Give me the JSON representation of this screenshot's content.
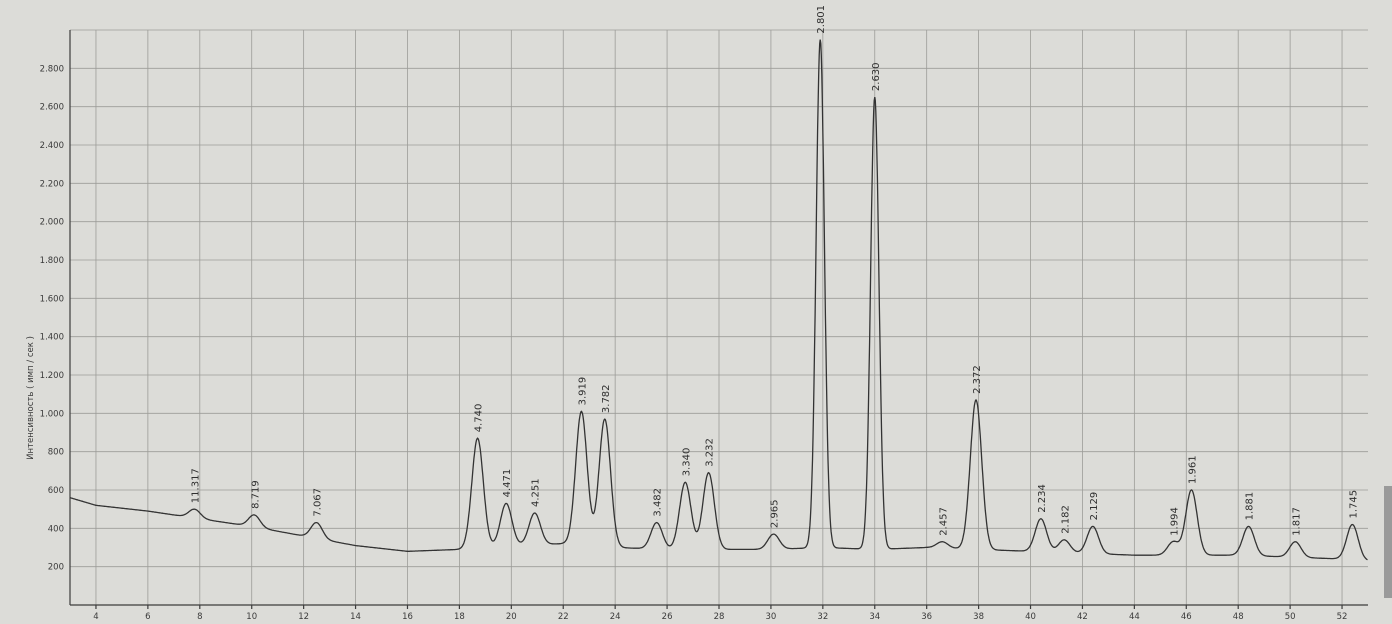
{
  "chart_data": {
    "type": "line",
    "title": "",
    "xlabel": "",
    "ylabel": "Интенсивность ( имп / сек )",
    "xlim": [
      3,
      53
    ],
    "ylim": [
      0,
      3000
    ],
    "x_ticks": [
      "4",
      "6",
      "8",
      "10",
      "12",
      "14",
      "16",
      "18",
      "20",
      "22",
      "24",
      "26",
      "28",
      "30",
      "32",
      "34",
      "36",
      "38",
      "40",
      "42",
      "44",
      "46",
      "48",
      "50",
      "52"
    ],
    "y_ticks": [
      "200",
      "400",
      "600",
      "800",
      "1.000",
      "1.200",
      "1.400",
      "1.600",
      "1.800",
      "2.000",
      "2.200",
      "2.400",
      "2.600",
      "2.800"
    ],
    "grid": true,
    "baseline": [
      [
        3,
        560
      ],
      [
        4,
        520
      ],
      [
        6,
        490
      ],
      [
        8,
        450
      ],
      [
        10,
        410
      ],
      [
        12,
        360
      ],
      [
        14,
        310
      ],
      [
        16,
        280
      ],
      [
        18,
        290
      ],
      [
        20,
        310
      ],
      [
        22,
        320
      ],
      [
        24,
        300
      ],
      [
        26,
        290
      ],
      [
        28,
        290
      ],
      [
        30,
        290
      ],
      [
        32,
        300
      ],
      [
        34,
        290
      ],
      [
        36,
        300
      ],
      [
        38,
        290
      ],
      [
        40,
        280
      ],
      [
        42,
        270
      ],
      [
        44,
        260
      ],
      [
        46,
        260
      ],
      [
        48,
        260
      ],
      [
        50,
        250
      ],
      [
        52,
        240
      ],
      [
        53,
        230
      ]
    ],
    "peaks": [
      {
        "two_theta": 7.8,
        "intensity": 500,
        "label": "11.317"
      },
      {
        "two_theta": 10.1,
        "intensity": 470,
        "label": "8.719"
      },
      {
        "two_theta": 12.5,
        "intensity": 430,
        "label": "7.067"
      },
      {
        "two_theta": 18.7,
        "intensity": 870,
        "label": "4.740"
      },
      {
        "two_theta": 19.8,
        "intensity": 530,
        "label": "4.471"
      },
      {
        "two_theta": 20.9,
        "intensity": 480,
        "label": "4.251"
      },
      {
        "two_theta": 22.7,
        "intensity": 1010,
        "label": "3.919"
      },
      {
        "two_theta": 23.6,
        "intensity": 970,
        "label": "3.782"
      },
      {
        "two_theta": 25.6,
        "intensity": 430,
        "label": "3.482"
      },
      {
        "two_theta": 26.7,
        "intensity": 640,
        "label": "3.340"
      },
      {
        "two_theta": 27.6,
        "intensity": 690,
        "label": "3.232"
      },
      {
        "two_theta": 30.1,
        "intensity": 370,
        "label": "2.965"
      },
      {
        "two_theta": 31.9,
        "intensity": 2950,
        "label": "2.801"
      },
      {
        "two_theta": 34.0,
        "intensity": 2650,
        "label": "2.630"
      },
      {
        "two_theta": 36.6,
        "intensity": 330,
        "label": "2.457"
      },
      {
        "two_theta": 37.9,
        "intensity": 1070,
        "label": "2.372"
      },
      {
        "two_theta": 40.4,
        "intensity": 450,
        "label": "2.234"
      },
      {
        "two_theta": 41.3,
        "intensity": 340,
        "label": "2.182"
      },
      {
        "two_theta": 42.4,
        "intensity": 410,
        "label": "2.129"
      },
      {
        "two_theta": 45.5,
        "intensity": 330,
        "label": "1.994"
      },
      {
        "two_theta": 46.2,
        "intensity": 600,
        "label": "1.961"
      },
      {
        "two_theta": 48.4,
        "intensity": 410,
        "label": "1.881"
      },
      {
        "two_theta": 50.2,
        "intensity": 330,
        "label": "1.817"
      },
      {
        "two_theta": 52.4,
        "intensity": 420,
        "label": "1.745"
      }
    ]
  }
}
